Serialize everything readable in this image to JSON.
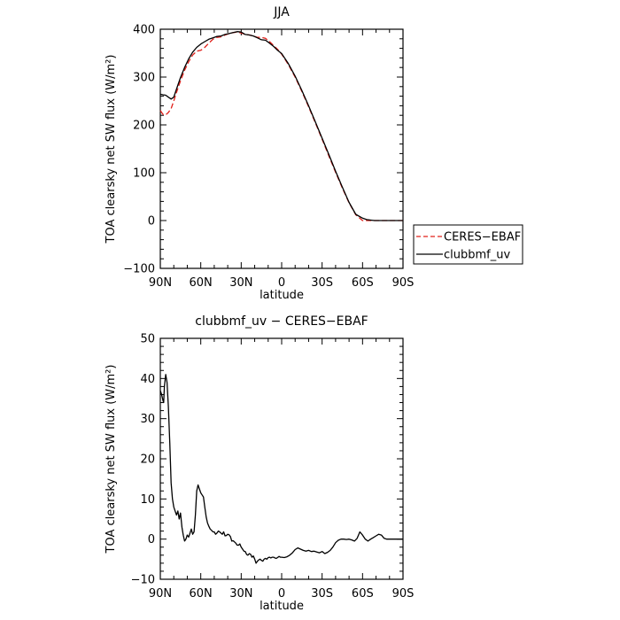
{
  "chart_data": [
    {
      "type": "line",
      "title": "JJA",
      "xlabel": "latitude",
      "ylabel": "TOA clearsky net SW flux (W/m²)",
      "xlim": [
        90,
        -90
      ],
      "ylim": [
        -100,
        400
      ],
      "x_ticks": [
        90,
        60,
        30,
        0,
        -30,
        -60,
        -90
      ],
      "x_tick_labels": [
        "90N",
        "60N",
        "30N",
        "0",
        "30S",
        "60S",
        "90S"
      ],
      "y_ticks": [
        -100,
        0,
        100,
        200,
        300,
        400
      ],
      "y_tick_labels": [
        "−100",
        "0",
        "100",
        "200",
        "300",
        "400"
      ],
      "legend": {
        "placement": "right-outside"
      },
      "series": [
        {
          "name": "CERES−EBAF",
          "color": "#e0201a",
          "dash": "dashed",
          "x": [
            90,
            88,
            86,
            84,
            82,
            80,
            78,
            75,
            72,
            69,
            66,
            63,
            60,
            57,
            54,
            51,
            48,
            45,
            42,
            39,
            36,
            33,
            30,
            27,
            24,
            21,
            18,
            15,
            12,
            9,
            6,
            3,
            0,
            -5,
            -10,
            -15,
            -20,
            -25,
            -30,
            -35,
            -40,
            -45,
            -50,
            -55,
            -60,
            -63,
            -66,
            -69,
            -72,
            -75,
            -80,
            -85,
            -90
          ],
          "y": [
            230,
            222,
            221,
            226,
            234,
            250,
            268,
            292,
            314,
            332,
            346,
            354,
            356,
            362,
            371,
            379,
            383,
            384,
            388,
            391,
            393,
            394,
            392,
            389,
            388,
            386,
            383,
            383,
            381,
            374,
            366,
            358,
            348,
            326,
            300,
            270,
            238,
            204,
            170,
            135,
            101,
            68,
            37,
            12,
            0,
            0,
            0,
            0,
            0,
            0,
            0,
            0,
            0
          ]
        },
        {
          "name": "clubbmf_uv",
          "color": "#000000",
          "dash": "solid",
          "x": [
            90,
            88,
            86,
            84,
            82,
            80,
            78,
            75,
            72,
            69,
            66,
            63,
            60,
            57,
            54,
            51,
            48,
            45,
            42,
            39,
            36,
            33,
            30,
            27,
            24,
            21,
            18,
            15,
            12,
            9,
            6,
            3,
            0,
            -5,
            -10,
            -15,
            -20,
            -25,
            -30,
            -35,
            -40,
            -45,
            -50,
            -55,
            -60,
            -63,
            -66,
            -69,
            -72,
            -75,
            -80,
            -85,
            -90
          ],
          "y": [
            264,
            263,
            262,
            258,
            254,
            258,
            275,
            299,
            320,
            338,
            352,
            362,
            369,
            374,
            379,
            382,
            385,
            386,
            389,
            391,
            393,
            395,
            394,
            389,
            388,
            386,
            382,
            378,
            377,
            371,
            364,
            356,
            349,
            328,
            302,
            272,
            240,
            206,
            172,
            138,
            103,
            70,
            38,
            13,
            5,
            2,
            1,
            0,
            0,
            0,
            0,
            0,
            0
          ]
        }
      ]
    },
    {
      "type": "line",
      "title": "clubbmf_uv − CERES−EBAF",
      "xlabel": "latitude",
      "ylabel": "TOA clearsky net SW flux (W/m²)",
      "xlim": [
        90,
        -90
      ],
      "ylim": [
        -10,
        50
      ],
      "x_ticks": [
        90,
        60,
        30,
        0,
        -30,
        -60,
        -90
      ],
      "x_tick_labels": [
        "90N",
        "60N",
        "30N",
        "0",
        "30S",
        "60S",
        "90S"
      ],
      "y_ticks": [
        -10,
        0,
        10,
        20,
        30,
        40,
        50
      ],
      "y_tick_labels": [
        "−10",
        "0",
        "10",
        "20",
        "30",
        "40",
        "50"
      ],
      "series": [
        {
          "color": "#000000",
          "dash": "solid",
          "x": [
            90,
            89,
            88,
            87.5,
            87,
            86,
            85,
            84,
            83,
            82,
            81,
            80,
            79,
            78,
            77,
            76,
            75,
            74,
            73,
            72,
            71,
            70,
            69,
            68,
            67,
            66,
            65,
            64,
            63,
            62,
            61,
            60,
            59,
            58,
            57,
            56,
            55,
            54,
            53,
            52,
            51,
            50,
            49,
            48,
            47,
            46,
            45,
            44,
            43,
            42,
            41,
            40,
            39,
            38,
            37,
            36,
            35,
            34,
            33,
            32,
            31,
            30,
            29,
            28,
            27,
            26,
            25,
            24,
            23,
            22,
            21,
            20,
            19,
            18,
            17,
            16,
            15,
            14,
            13,
            12,
            11,
            10,
            9,
            8,
            7,
            6,
            5,
            4,
            3,
            2,
            1,
            0,
            -2,
            -4,
            -6,
            -8,
            -10,
            -12,
            -14,
            -16,
            -18,
            -20,
            -22,
            -24,
            -26,
            -28,
            -30,
            -32,
            -34,
            -36,
            -38,
            -40,
            -42,
            -44,
            -46,
            -48,
            -50,
            -52,
            -54,
            -56,
            -58,
            -60,
            -62,
            -64,
            -66,
            -68,
            -70,
            -72,
            -74,
            -76,
            -78,
            -80,
            -84,
            -88,
            -90
          ],
          "y": [
            37,
            36,
            34.5,
            34,
            38,
            41,
            39,
            33,
            24,
            14,
            10,
            8,
            7,
            6,
            7,
            5,
            6.5,
            3,
            1,
            -0.5,
            0,
            1,
            0.5,
            1.5,
            2.5,
            1.2,
            1.8,
            6,
            12,
            13.5,
            12.5,
            11.5,
            11,
            10.5,
            8,
            5.5,
            4,
            3.2,
            2.5,
            2.2,
            1.8,
            1.8,
            1.2,
            1.5,
            2,
            1.8,
            1.5,
            1.2,
            1.8,
            0.8,
            0.9,
            1.2,
            1.1,
            0.6,
            -0.5,
            -0.4,
            -0.7,
            -1,
            -1.5,
            -1.5,
            -1.2,
            -2,
            -2.5,
            -3,
            -3.1,
            -3.8,
            -4,
            -3.6,
            -3.8,
            -4.5,
            -4.2,
            -5,
            -6,
            -5.5,
            -5.2,
            -5,
            -5.3,
            -5.5,
            -5,
            -4.8,
            -5,
            -4.6,
            -4.5,
            -4.7,
            -4.5,
            -4.5,
            -4.7,
            -4.8,
            -4.6,
            -4.3,
            -4.5,
            -4.5,
            -4.6,
            -4.4,
            -4,
            -3.4,
            -2.6,
            -2.2,
            -2.5,
            -2.8,
            -3,
            -2.8,
            -3.1,
            -3.0,
            -3.2,
            -3.4,
            -3.1,
            -3.6,
            -3.3,
            -2.8,
            -2,
            -0.9,
            -0.3,
            0,
            0,
            -0.1,
            0,
            -0.2,
            -0.5,
            0.2,
            1.8,
            1,
            0,
            -0.5,
            0,
            0.4,
            0.8,
            1.2,
            1,
            0.2,
            0,
            0,
            0,
            0,
            0
          ]
        }
      ]
    }
  ]
}
